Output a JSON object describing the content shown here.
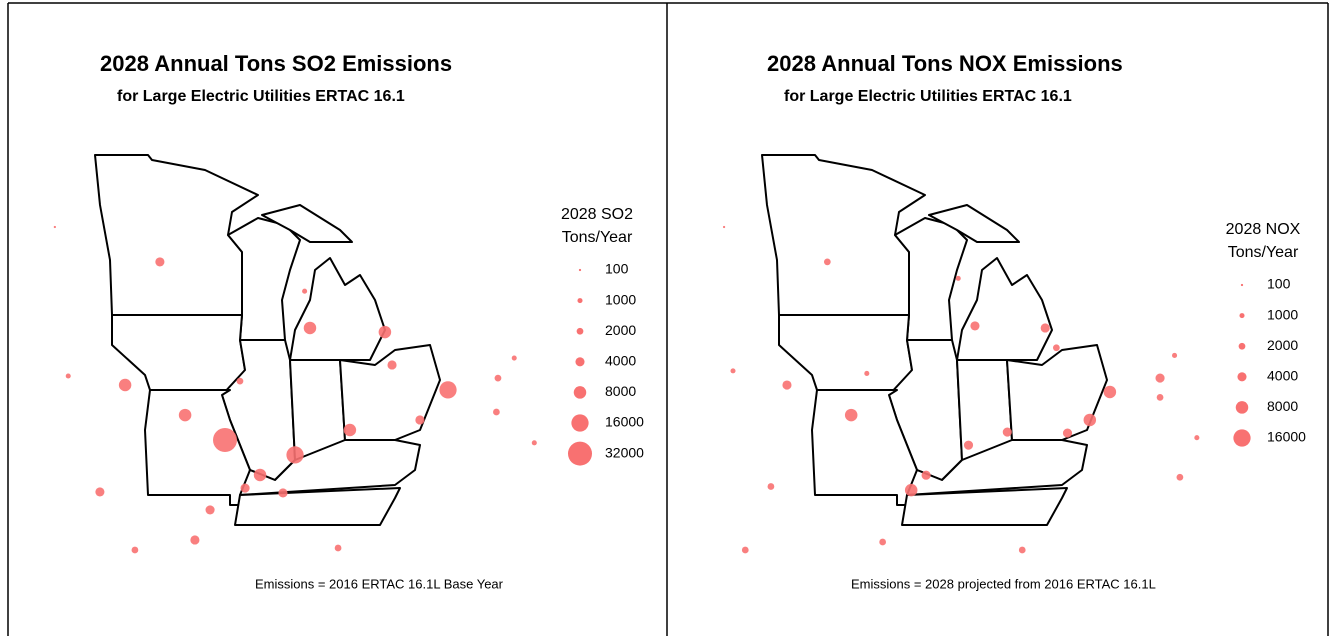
{
  "panels": [
    {
      "title": "2028 Annual Tons SO2 Emissions",
      "subtitle": "for Large Electric Utilities ERTAC 16.1",
      "legend_title": [
        "2028 SO2",
        "Tons/Year"
      ],
      "legend_values": [
        100,
        1000,
        2000,
        4000,
        8000,
        16000,
        32000
      ],
      "note": "Emissions = 2016 ERTAC 16.1L Base Year",
      "points": [
        {
          "lon": -91.47,
          "lat": 38.31,
          "tons": 32000
        },
        {
          "lon": -81.47,
          "lat": 40.26,
          "tons": 16000
        },
        {
          "lon": -88.33,
          "lat": 37.73,
          "tons": 16000
        },
        {
          "lon": -84.3,
          "lat": 42.51,
          "tons": 8000
        },
        {
          "lon": -87.66,
          "lat": 42.67,
          "tons": 8000
        },
        {
          "lon": -93.26,
          "lat": 39.28,
          "tons": 8000
        },
        {
          "lon": -85.87,
          "lat": 38.7,
          "tons": 8000
        },
        {
          "lon": -95.95,
          "lat": 40.45,
          "tons": 8000
        },
        {
          "lon": -89.9,
          "lat": 36.95,
          "tons": 8000
        },
        {
          "lon": -94.39,
          "lat": 45.24,
          "tons": 4000
        },
        {
          "lon": -97.08,
          "lat": 36.29,
          "tons": 4000
        },
        {
          "lon": -92.14,
          "lat": 35.59,
          "tons": 4000
        },
        {
          "lon": -92.82,
          "lat": 34.42,
          "tons": 4000
        },
        {
          "lon": -88.87,
          "lat": 36.25,
          "tons": 4000
        },
        {
          "lon": -83.98,
          "lat": 41.23,
          "tons": 4000
        },
        {
          "lon": -82.73,
          "lat": 39.09,
          "tons": 4000
        },
        {
          "lon": -90.57,
          "lat": 36.44,
          "tons": 4000
        },
        {
          "lon": -79.23,
          "lat": 40.72,
          "tons": 2000
        },
        {
          "lon": -95.51,
          "lat": 34.03,
          "tons": 2000
        },
        {
          "lon": -86.4,
          "lat": 34.11,
          "tons": 2000
        },
        {
          "lon": -79.3,
          "lat": 39.4,
          "tons": 2000
        },
        {
          "lon": -90.8,
          "lat": 40.6,
          "tons": 2000
        },
        {
          "lon": -98.5,
          "lat": 40.8,
          "tons": 1000
        },
        {
          "lon": -78.5,
          "lat": 41.5,
          "tons": 1000
        },
        {
          "lon": -87.9,
          "lat": 44.1,
          "tons": 1000
        },
        {
          "lon": -99.1,
          "lat": 46.6,
          "tons": 100
        },
        {
          "lon": -77.6,
          "lat": 38.2,
          "tons": 1000
        }
      ]
    },
    {
      "title": "2028 Annual Tons NOX Emissions",
      "subtitle": "for Large Electric Utilities ERTAC 16.1",
      "legend_title": [
        "2028 NOX",
        "Tons/Year"
      ],
      "legend_values": [
        100,
        1000,
        2000,
        4000,
        8000,
        16000
      ],
      "note": "Emissions = 2028 projected from 2016 ERTAC 16.1L",
      "points": [
        {
          "lon": -81.7,
          "lat": 40.18,
          "tons": 8000
        },
        {
          "lon": -93.3,
          "lat": 39.28,
          "tons": 8000
        },
        {
          "lon": -90.61,
          "lat": 36.36,
          "tons": 8000
        },
        {
          "lon": -82.6,
          "lat": 39.09,
          "tons": 8000
        },
        {
          "lon": -79.45,
          "lat": 40.72,
          "tons": 4000
        },
        {
          "lon": -87.75,
          "lat": 42.75,
          "tons": 4000
        },
        {
          "lon": -84.6,
          "lat": 42.67,
          "tons": 4000
        },
        {
          "lon": -89.94,
          "lat": 36.94,
          "tons": 4000
        },
        {
          "lon": -86.3,
          "lat": 38.62,
          "tons": 4000
        },
        {
          "lon": -83.6,
          "lat": 38.58,
          "tons": 4000
        },
        {
          "lon": -96.18,
          "lat": 40.45,
          "tons": 4000
        },
        {
          "lon": -88.04,
          "lat": 38.11,
          "tons": 4000
        },
        {
          "lon": -98.05,
          "lat": 34.03,
          "tons": 2000
        },
        {
          "lon": -85.63,
          "lat": 34.03,
          "tons": 2000
        },
        {
          "lon": -91.89,
          "lat": 34.34,
          "tons": 2000
        },
        {
          "lon": -94.37,
          "lat": 45.24,
          "tons": 2000
        },
        {
          "lon": -78.56,
          "lat": 36.86,
          "tons": 2000
        },
        {
          "lon": -79.45,
          "lat": 39.97,
          "tons": 2000
        },
        {
          "lon": -84.1,
          "lat": 41.9,
          "tons": 2000
        },
        {
          "lon": -96.9,
          "lat": 36.5,
          "tons": 2000
        },
        {
          "lon": -98.6,
          "lat": 41.0,
          "tons": 1000
        },
        {
          "lon": -78.8,
          "lat": 41.6,
          "tons": 1000
        },
        {
          "lon": -88.5,
          "lat": 44.6,
          "tons": 1000
        },
        {
          "lon": -99.0,
          "lat": 46.6,
          "tons": 100
        },
        {
          "lon": -77.8,
          "lat": 38.4,
          "tons": 1000
        },
        {
          "lon": -92.6,
          "lat": 40.9,
          "tons": 1000
        }
      ]
    }
  ]
}
